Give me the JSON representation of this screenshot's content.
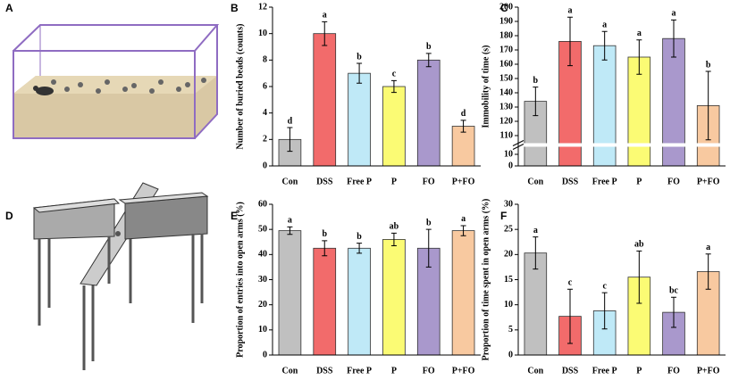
{
  "chart_data": [
    {
      "type": "bar",
      "label": "B",
      "ylabel": "Number of buried beads (counts)",
      "categories": [
        "Con",
        "DSS",
        "Free P",
        "P",
        "FO",
        "P+FO"
      ],
      "values": [
        2,
        10,
        7,
        6,
        8,
        3
      ],
      "errors": [
        0.9,
        0.9,
        0.75,
        0.45,
        0.5,
        0.45
      ],
      "annotations": [
        "d",
        "a",
        "b",
        "c",
        "b",
        "d"
      ],
      "colors": [
        "#c0c0c0",
        "#f26b6b",
        "#bfe9f7",
        "#fbfb74",
        "#a998cc",
        "#f8c9a0"
      ],
      "ylim": [
        0,
        12
      ],
      "yticks": [
        0,
        2,
        4,
        6,
        8,
        10,
        12
      ]
    },
    {
      "type": "bar",
      "label": "C",
      "ylabel": "Immobility of time (s)",
      "categories": [
        "Con",
        "DSS",
        "Free P",
        "P",
        "FO",
        "P+FO"
      ],
      "values": [
        134,
        176,
        173,
        165,
        178,
        131
      ],
      "errors": [
        10,
        17,
        10,
        12,
        13,
        24
      ],
      "annotations": [
        "b",
        "a",
        "a",
        "a",
        "a",
        "b"
      ],
      "colors": [
        "#c0c0c0",
        "#f26b6b",
        "#bfe9f7",
        "#fbfb74",
        "#a998cc",
        "#f8c9a0"
      ],
      "ylim": [
        110,
        200
      ],
      "yticks": [
        110,
        120,
        130,
        140,
        150,
        160,
        170,
        180,
        190,
        200
      ],
      "broken_axis": {
        "ylim": [
          0,
          10
        ],
        "yticks": [
          0,
          10
        ]
      }
    },
    {
      "type": "bar",
      "label": "E",
      "ylabel": "Proportion of entries into open arms (%)",
      "categories": [
        "Con",
        "DSS",
        "Free P",
        "P",
        "FO",
        "P+FO"
      ],
      "values": [
        49.5,
        42.5,
        42.5,
        46,
        42.5,
        49.5
      ],
      "errors": [
        1.5,
        3,
        2,
        2.5,
        7.5,
        2
      ],
      "annotations": [
        "a",
        "b",
        "b",
        "ab",
        "b",
        "a"
      ],
      "colors": [
        "#c0c0c0",
        "#f26b6b",
        "#bfe9f7",
        "#fbfb74",
        "#a998cc",
        "#f8c9a0"
      ],
      "ylim": [
        0,
        60
      ],
      "yticks": [
        0,
        10,
        20,
        30,
        40,
        50,
        60
      ]
    },
    {
      "type": "bar",
      "label": "F",
      "ylabel": "Proportion of time spent in open arms (%)",
      "categories": [
        "Con",
        "DSS",
        "Free P",
        "P",
        "FO",
        "P+FO"
      ],
      "values": [
        20.3,
        7.7,
        8.8,
        15.5,
        8.5,
        16.6
      ],
      "errors": [
        3.2,
        5.4,
        3.6,
        5.2,
        3,
        3.5
      ],
      "annotations": [
        "a",
        "c",
        "c",
        "ab",
        "bc",
        "a"
      ],
      "colors": [
        "#c0c0c0",
        "#f26b6b",
        "#bfe9f7",
        "#fbfb74",
        "#a998cc",
        "#f8c9a0"
      ],
      "ylim": [
        0,
        30
      ],
      "yticks": [
        0,
        5,
        10,
        15,
        20,
        25,
        30
      ]
    }
  ],
  "illustrations": [
    {
      "label": "A"
    },
    {
      "label": "D"
    }
  ]
}
